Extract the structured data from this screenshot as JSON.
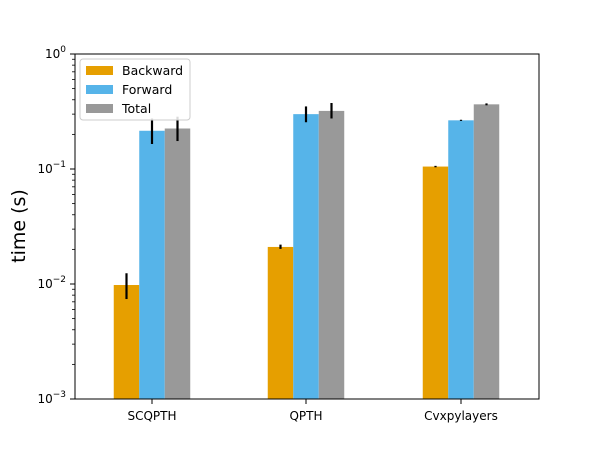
{
  "chart_data": {
    "type": "bar",
    "title": "",
    "xlabel": "",
    "ylabel": "time (s)",
    "yscale": "log",
    "ylim": [
      0.001,
      1
    ],
    "y_ticks": [
      {
        "value": 0.001,
        "base": "10",
        "exp": "−3"
      },
      {
        "value": 0.01,
        "base": "10",
        "exp": "−2"
      },
      {
        "value": 0.1,
        "base": "10",
        "exp": "−1"
      },
      {
        "value": 1,
        "base": "10",
        "exp": "0"
      }
    ],
    "grid": false,
    "legend_position": "top-left",
    "categories": [
      "SCQPTH",
      "QPTH",
      "Cvxpylayers"
    ],
    "series": [
      {
        "name": "Backward",
        "color": "#E69F00",
        "values": [
          0.0098,
          0.021,
          0.105
        ],
        "err_low": [
          0.0074,
          0.0202,
          0.1035
        ],
        "err_high": [
          0.0124,
          0.022,
          0.1065
        ]
      },
      {
        "name": "Forward",
        "color": "#56B4E9",
        "values": [
          0.215,
          0.3,
          0.265
        ],
        "err_low": [
          0.165,
          0.255,
          0.262
        ],
        "err_high": [
          0.275,
          0.35,
          0.268
        ]
      },
      {
        "name": "Total",
        "color": "#999999",
        "values": [
          0.225,
          0.32,
          0.365
        ],
        "err_low": [
          0.175,
          0.275,
          0.358
        ],
        "err_high": [
          0.285,
          0.375,
          0.372
        ]
      }
    ]
  }
}
